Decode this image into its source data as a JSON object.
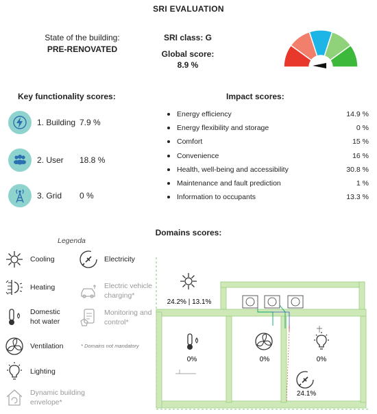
{
  "title": "SRI EVALUATION",
  "state": {
    "label": "State of the building:",
    "value": "PRE-RENOVATED"
  },
  "sri_class": "SRI class: G",
  "global_score": {
    "label": "Global score:",
    "value": "8.9 %"
  },
  "gauge": {
    "colors": [
      "#e8382c",
      "#f27e6c",
      "#1db4e6",
      "#8fd27a",
      "#3cb83a"
    ],
    "needle_color": "#111111"
  },
  "key_functionality": {
    "title": "Key functionality scores:",
    "items": [
      {
        "label": "1. Building",
        "value": "7.9 %",
        "icon": "lightning-icon"
      },
      {
        "label": "2. User",
        "value": "18.8 %",
        "icon": "users-icon"
      },
      {
        "label": "3. Grid",
        "value": "0 %",
        "icon": "tower-icon"
      }
    ]
  },
  "impact": {
    "title": "Impact scores:",
    "items": [
      {
        "label": "Energy efficiency",
        "value": "14.9 %"
      },
      {
        "label": "Energy flexibility and storage",
        "value": "0 %"
      },
      {
        "label": "Comfort",
        "value": "15 %"
      },
      {
        "label": "Convenience",
        "value": "16 %"
      },
      {
        "label": "Health, well-being and accessibility",
        "value": "30.8 %"
      },
      {
        "label": "Maintenance and fault prediction",
        "value": "1 %"
      },
      {
        "label": "Information to occupants",
        "value": "13.3 %"
      }
    ]
  },
  "domains": {
    "title": "Domains scores:",
    "legenda": "Legenda",
    "legend_left": [
      "Cooling",
      "Heating",
      "Domestic hot water",
      "Ventilation",
      "Lighting",
      "Dynamic building envelope*"
    ],
    "legend_right": [
      "Electricity",
      "Electric vehicle charging*",
      "Monitoring and control*"
    ],
    "note": "* Domains not mandatory",
    "plan": {
      "cooling_heating": "24.2% | 13.1%",
      "hot_water": "0%",
      "ventilation": "0%",
      "lighting": "0%",
      "electricity": "24.1%"
    },
    "plan_color": "#cfe8b8"
  }
}
